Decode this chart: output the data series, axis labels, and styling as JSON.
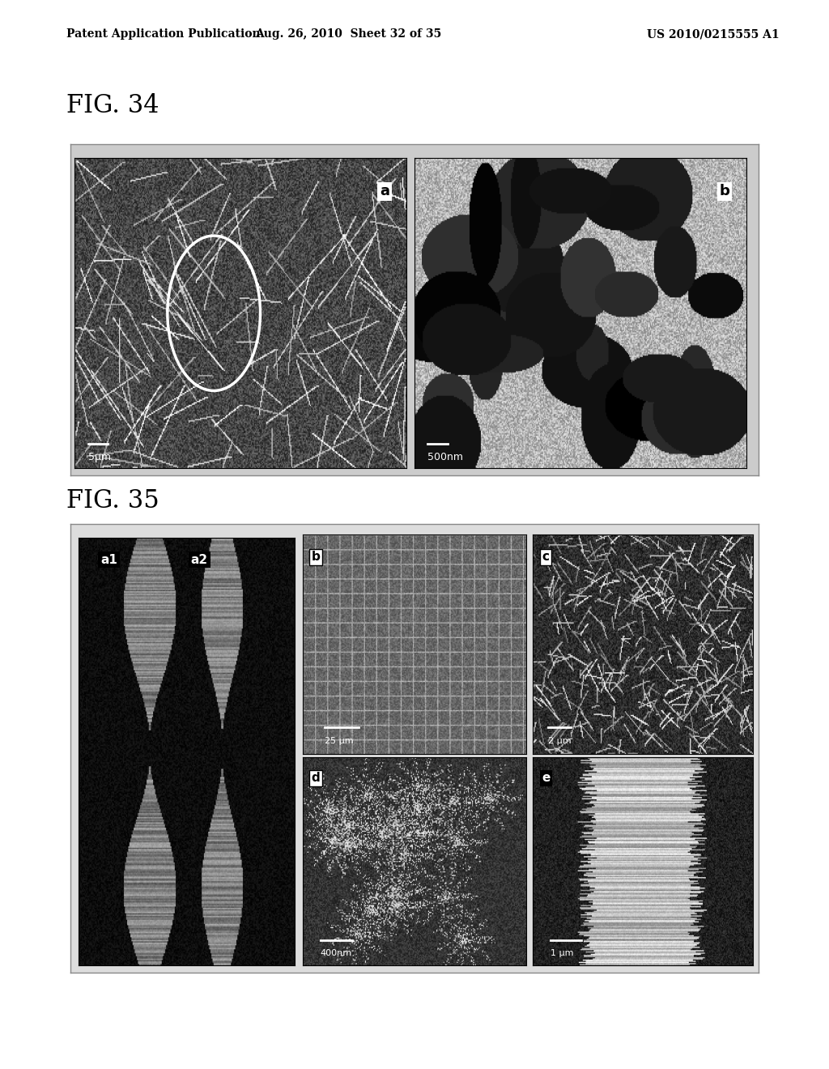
{
  "bg_color": "#ffffff",
  "header_left": "Patent Application Publication",
  "header_mid": "Aug. 26, 2010  Sheet 32 of 35",
  "header_right": "US 2010/0215555 A1",
  "fig34_label": "FIG. 34",
  "fig35_label": "FIG. 35",
  "scale_bar_color": "#ffffff",
  "fig34_label_a": "a",
  "fig34_label_b": "b",
  "fig34_scale_a": "5μm",
  "fig34_scale_b": "500nm",
  "fig35_label_a1": "a1",
  "fig35_label_a2": "a2",
  "fig35_label_b": "b",
  "fig35_label_c": "c",
  "fig35_label_d": "d",
  "fig35_label_e": "e",
  "fig35_scale_b": "25 μm",
  "fig35_scale_c": "2 μm",
  "fig35_scale_d": "400nm",
  "fig35_scale_e": "1 μm"
}
